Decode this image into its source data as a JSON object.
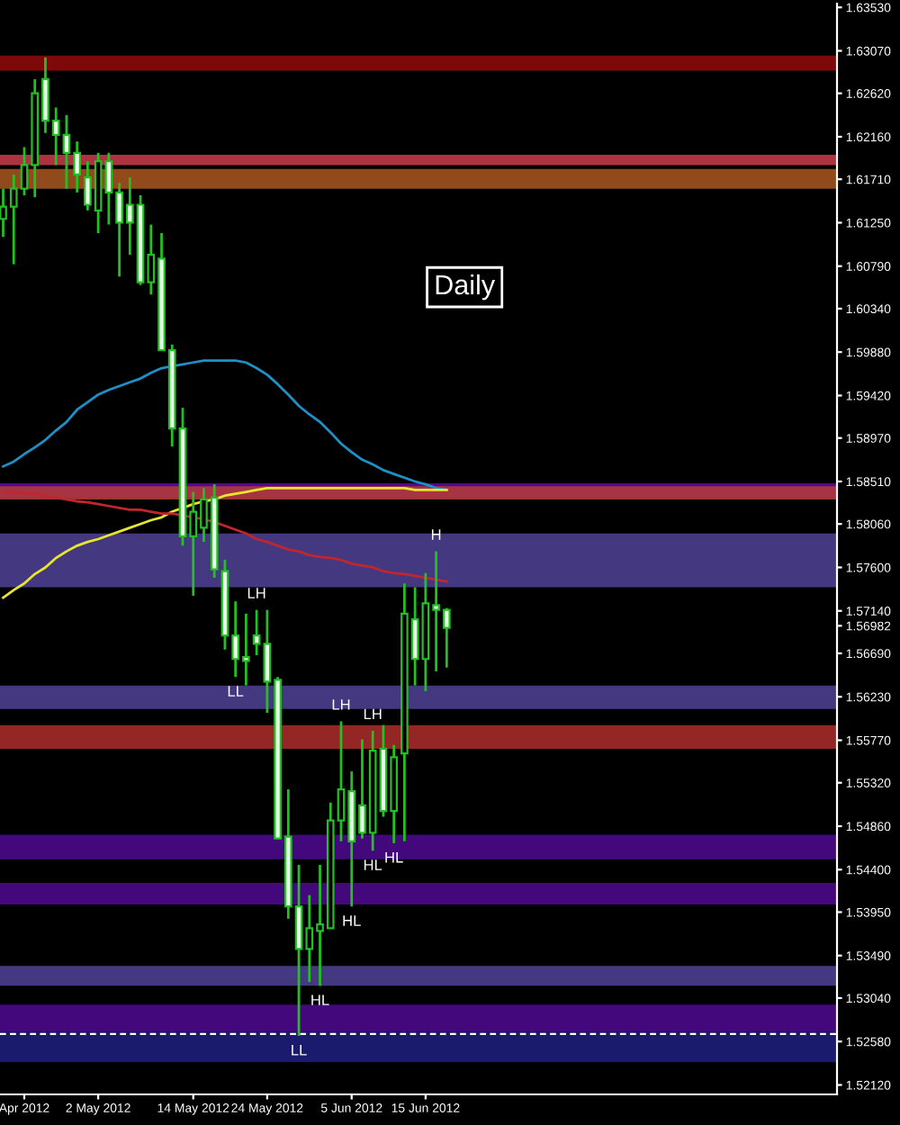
{
  "chart_data": {
    "type": "candlestick",
    "title": "Daily",
    "categories": [
      null,
      null,
      "Apr 2012",
      null,
      null,
      null,
      null,
      null,
      null,
      "2 May 2012",
      null,
      null,
      null,
      null,
      null,
      null,
      null,
      null,
      "14 May 2012",
      null,
      null,
      null,
      null,
      null,
      null,
      "24 May 2012",
      null,
      null,
      null,
      null,
      null,
      null,
      null,
      "5 Jun 2012",
      null,
      null,
      null,
      null,
      null,
      null,
      "15 Jun 2012",
      null,
      null
    ],
    "ohlc": [
      [
        1.6129,
        1.6161,
        1.611,
        1.6142
      ],
      [
        1.6142,
        1.6176,
        1.6081,
        1.6161
      ],
      [
        1.6161,
        1.6205,
        1.6154,
        1.6186
      ],
      [
        1.6186,
        1.6277,
        1.6152,
        1.6262
      ],
      [
        1.6277,
        1.63,
        1.622,
        1.6233
      ],
      [
        1.6233,
        1.6247,
        1.6186,
        1.6218
      ],
      [
        1.6218,
        1.6239,
        1.6161,
        1.6199
      ],
      [
        1.6199,
        1.6211,
        1.6157,
        1.6176
      ],
      [
        1.6173,
        1.619,
        1.6138,
        1.6144
      ],
      [
        1.6138,
        1.6199,
        1.6114,
        1.619
      ],
      [
        1.619,
        1.6199,
        1.6123,
        1.6157
      ],
      [
        1.6157,
        1.6167,
        1.6068,
        1.6125
      ],
      [
        1.6144,
        1.6173,
        1.6091,
        1.6125
      ],
      [
        1.6144,
        1.6154,
        1.6059,
        1.6062
      ],
      [
        1.6062,
        1.6123,
        1.6049,
        1.6091
      ],
      [
        1.6087,
        1.6114,
        1.599,
        1.599
      ],
      [
        1.599,
        1.5996,
        1.5888,
        1.5907
      ],
      [
        1.5907,
        1.5929,
        1.5783,
        1.5793
      ],
      [
        1.5793,
        1.584,
        1.573,
        1.5819
      ],
      [
        1.5802,
        1.5844,
        1.5787,
        1.5832
      ],
      [
        1.5834,
        1.5848,
        1.5749,
        1.5758
      ],
      [
        1.5756,
        1.5768,
        1.5673,
        1.5688
      ],
      [
        1.5688,
        1.5724,
        1.5644,
        1.5663
      ],
      [
        1.5665,
        1.5711,
        1.5635,
        1.5661
      ],
      [
        1.5688,
        1.5715,
        1.5667,
        1.5679
      ],
      [
        1.5679,
        1.5715,
        1.5606,
        1.5639
      ],
      [
        1.5641,
        1.5644,
        1.5473,
        1.5473
      ],
      [
        1.5475,
        1.5525,
        1.5388,
        1.5401
      ],
      [
        1.5401,
        1.5445,
        1.5264,
        1.5356
      ],
      [
        1.5356,
        1.5413,
        1.5321,
        1.5378
      ],
      [
        1.5375,
        1.5445,
        1.5317,
        1.5382
      ],
      [
        1.5378,
        1.5511,
        1.5378,
        1.5492
      ],
      [
        1.5492,
        1.5597,
        1.547,
        1.5525
      ],
      [
        1.5523,
        1.5544,
        1.5401,
        1.547
      ],
      [
        1.5508,
        1.5578,
        1.5473,
        1.5479
      ],
      [
        1.5479,
        1.5587,
        1.546,
        1.5566
      ],
      [
        1.5568,
        1.5593,
        1.5496,
        1.5502
      ],
      [
        1.5502,
        1.5572,
        1.5468,
        1.5559
      ],
      [
        1.5563,
        1.5743,
        1.547,
        1.5711
      ],
      [
        1.5705,
        1.5739,
        1.5635,
        1.5663
      ],
      [
        1.5663,
        1.5754,
        1.5629,
        1.5722
      ],
      [
        1.572,
        1.5777,
        1.565,
        1.5715
      ],
      [
        1.5715,
        1.5717,
        1.5654,
        1.5696
      ]
    ],
    "series": [
      {
        "type": "line",
        "color": "#1e90c8",
        "values": [
          1.5867,
          1.5872,
          1.588,
          1.5887,
          1.5895,
          1.5905,
          1.5914,
          1.5927,
          1.5935,
          1.5943,
          1.5948,
          1.5952,
          1.5956,
          1.596,
          1.5966,
          1.5971,
          1.5973,
          1.5975,
          1.5977,
          1.5979,
          1.5979,
          1.5979,
          1.5979,
          1.5977,
          1.5971,
          1.5964,
          1.5954,
          1.5943,
          1.5931,
          1.5922,
          1.5914,
          1.5903,
          1.5891,
          1.5882,
          1.5874,
          1.5869,
          1.5863,
          1.5859,
          1.5855,
          1.5851,
          1.5848,
          1.5844,
          1.5842
        ]
      },
      {
        "type": "line",
        "color": "#e6e62e",
        "values": [
          1.5728,
          1.5736,
          1.5743,
          1.5753,
          1.576,
          1.577,
          1.5777,
          1.5783,
          1.5787,
          1.579,
          1.5794,
          1.5798,
          1.5802,
          1.5806,
          1.581,
          1.5813,
          1.5819,
          1.5823,
          1.5827,
          1.583,
          1.5832,
          1.5836,
          1.5838,
          1.584,
          1.5842,
          1.5844,
          1.5844,
          1.5844,
          1.5844,
          1.5844,
          1.5844,
          1.5844,
          1.5844,
          1.5844,
          1.5844,
          1.5844,
          1.5844,
          1.5844,
          1.5844,
          1.5842,
          1.5842,
          1.5842,
          1.5842
        ]
      },
      {
        "type": "line",
        "color": "#c0262e",
        "values": [
          1.584,
          1.584,
          1.5838,
          1.5838,
          1.5836,
          1.5834,
          1.5832,
          1.583,
          1.5829,
          1.5827,
          1.5825,
          1.5823,
          1.5821,
          1.5821,
          1.5819,
          1.5817,
          1.5817,
          1.5815,
          1.5813,
          1.5811,
          1.5808,
          1.5804,
          1.58,
          1.5796,
          1.579,
          1.5787,
          1.5783,
          1.5779,
          1.5777,
          1.5773,
          1.5771,
          1.577,
          1.5768,
          1.5764,
          1.5762,
          1.576,
          1.5756,
          1.5754,
          1.5753,
          1.5751,
          1.5749,
          1.5747,
          1.5745
        ]
      }
    ],
    "bands": [
      {
        "axis": "y",
        "from": 1.6286,
        "to": 1.6302,
        "color": "#8c0a0a"
      },
      {
        "axis": "y",
        "from": 1.6186,
        "to": 1.6197,
        "color": "#c0394a"
      },
      {
        "axis": "y",
        "from": 1.6161,
        "to": 1.6182,
        "color": "#a0521e"
      },
      {
        "axis": "y",
        "from": 1.5834,
        "to": 1.5849,
        "color": "#5a0aa0"
      },
      {
        "axis": "y",
        "from": 1.5832,
        "to": 1.5846,
        "color": "#b03a3a"
      },
      {
        "axis": "y",
        "from": 1.5739,
        "to": 1.5796,
        "color": "#4b3f8f"
      },
      {
        "axis": "y",
        "from": 1.561,
        "to": 1.5635,
        "color": "#4b3f8f"
      },
      {
        "axis": "y",
        "from": 1.5568,
        "to": 1.5593,
        "color": "#a52a2a"
      },
      {
        "axis": "y",
        "from": 1.5451,
        "to": 1.5477,
        "color": "#4a0a8a"
      },
      {
        "axis": "y",
        "from": 1.5403,
        "to": 1.5426,
        "color": "#4a0a8a"
      },
      {
        "axis": "y",
        "from": 1.5317,
        "to": 1.5338,
        "color": "#4b3f8f"
      },
      {
        "axis": "y",
        "from": 1.5268,
        "to": 1.5297,
        "color": "#4a0a8a"
      },
      {
        "axis": "y",
        "from": 1.5236,
        "to": 1.5268,
        "color": "#1e1e7a"
      }
    ],
    "ref_lines": [
      {
        "axis": "y",
        "value": 1.5266,
        "color": "#ffffff",
        "line_style": "dashed"
      }
    ],
    "annotations": [
      {
        "text": "H",
        "y": 1.5777
      },
      {
        "text": "LH",
        "y": 1.5715
      },
      {
        "text": "LL",
        "y": 1.5644
      },
      {
        "text": "LH",
        "y": 1.5597
      },
      {
        "text": "LH",
        "y": 1.5587
      },
      {
        "text": "HL",
        "y": 1.5468
      },
      {
        "text": "HL",
        "y": 1.546
      },
      {
        "text": "HL",
        "y": 1.5401
      },
      {
        "text": "HL",
        "y": 1.5317
      },
      {
        "text": "LL",
        "y": 1.5264
      }
    ],
    "ylim": [
      1.5202,
      1.6357
    ],
    "yticks": [
      {
        "value": 1.6353,
        "label": "1.63530"
      },
      {
        "value": 1.6307,
        "label": "1.63070"
      },
      {
        "value": 1.6262,
        "label": "1.62620"
      },
      {
        "value": 1.6216,
        "label": "1.62160"
      },
      {
        "value": 1.6171,
        "label": "1.61710"
      },
      {
        "value": 1.6125,
        "label": "1.61250"
      },
      {
        "value": 1.6079,
        "label": "1.60790"
      },
      {
        "value": 1.6034,
        "label": "1.60340"
      },
      {
        "value": 1.5988,
        "label": "1.59880"
      },
      {
        "value": 1.5942,
        "label": "1.59420"
      },
      {
        "value": 1.5897,
        "label": "1.58970"
      },
      {
        "value": 1.5851,
        "label": "1.58510"
      },
      {
        "value": 1.5806,
        "label": "1.58060"
      },
      {
        "value": 1.576,
        "label": "1.57600"
      },
      {
        "value": 1.5714,
        "label": "1.57140"
      },
      {
        "value": 1.56982,
        "label": "1.56982"
      },
      {
        "value": 1.5669,
        "label": "1.56690"
      },
      {
        "value": 1.5623,
        "label": "1.56230"
      },
      {
        "value": 1.5577,
        "label": "1.55770"
      },
      {
        "value": 1.5532,
        "label": "1.55320"
      },
      {
        "value": 1.5486,
        "label": "1.54860"
      },
      {
        "value": 1.544,
        "label": "1.54400"
      },
      {
        "value": 1.5395,
        "label": "1.53950"
      },
      {
        "value": 1.5349,
        "label": "1.53490"
      },
      {
        "value": 1.5304,
        "label": "1.53040"
      },
      {
        "value": 1.5258,
        "label": "1.52580"
      },
      {
        "value": 1.5212,
        "label": "1.52120"
      }
    ]
  }
}
